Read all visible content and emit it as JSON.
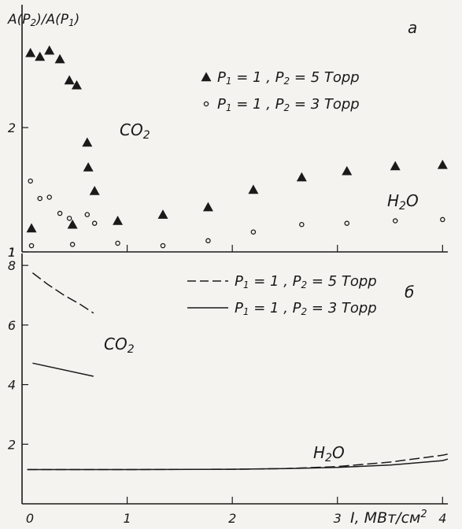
{
  "chart_data": [
    {
      "panel_label": "a",
      "type": "scatter",
      "ylabel": "A(P2)/A(P1)",
      "ylim": [
        1,
        2.95
      ],
      "xlim": [
        0,
        4.05
      ],
      "y_ticks": [
        1,
        2
      ],
      "x_ticks": [
        1,
        2,
        3,
        4
      ],
      "legend_position": "top-right",
      "annotations": [
        "CO2",
        "H2O"
      ],
      "series": [
        {
          "name": "P1 = 1 , P2 = 5 Торр",
          "marker": "triangle",
          "x": [
            0.08,
            0.17,
            0.26,
            0.36,
            0.45,
            0.52,
            0.62,
            0.63,
            0.69,
            0.09,
            0.48,
            0.91,
            1.34,
            1.77,
            2.2,
            2.66,
            3.09,
            3.55,
            4.0
          ],
          "y": [
            2.6,
            2.57,
            2.62,
            2.55,
            2.38,
            2.34,
            1.88,
            1.68,
            1.49,
            1.19,
            1.22,
            1.25,
            1.3,
            1.36,
            1.5,
            1.6,
            1.65,
            1.69,
            1.7
          ]
        },
        {
          "name": "P1 = 1 , P2 = 3 Торр",
          "marker": "circle",
          "x": [
            0.08,
            0.17,
            0.26,
            0.36,
            0.45,
            0.62,
            0.69,
            0.09,
            0.48,
            0.91,
            1.34,
            1.77,
            2.2,
            2.66,
            3.09,
            3.55,
            4.0
          ],
          "y": [
            1.57,
            1.43,
            1.44,
            1.31,
            1.27,
            1.3,
            1.23,
            1.05,
            1.06,
            1.07,
            1.05,
            1.09,
            1.16,
            1.22,
            1.23,
            1.25,
            1.26
          ]
        }
      ]
    },
    {
      "panel_label": "б",
      "type": "line",
      "xlabel": "I, МВт/см²",
      "ylim": [
        0,
        8.4
      ],
      "xlim": [
        0,
        4.05
      ],
      "y_ticks": [
        2,
        4,
        6,
        8
      ],
      "x_ticks": [
        0,
        1,
        2,
        3,
        4
      ],
      "legend_position": "top-right",
      "annotations": [
        "CO2",
        "H2O"
      ],
      "series": [
        {
          "name": "P1 = 1 , P2 = 5 Торр",
          "dash": "dashed",
          "group": "CO2",
          "x": [
            0.1,
            0.25,
            0.4,
            0.55,
            0.68
          ],
          "y": [
            7.75,
            7.35,
            7.0,
            6.7,
            6.4
          ]
        },
        {
          "name": "P1 = 1 , P2 = 5 Торр",
          "dash": "dashed",
          "group": "H2O",
          "x": [
            0.05,
            1.0,
            2.0,
            2.5,
            3.0,
            3.5,
            4.0,
            4.05
          ],
          "y": [
            1.15,
            1.15,
            1.16,
            1.18,
            1.25,
            1.4,
            1.63,
            1.67
          ]
        },
        {
          "name": "P1 = 1 , P2 = 3 Торр",
          "dash": "solid",
          "group": "CO2",
          "x": [
            0.1,
            0.68
          ],
          "y": [
            4.72,
            4.28
          ]
        },
        {
          "name": "P1 = 1 , P2 = 3 Торр",
          "dash": "solid",
          "group": "H2O",
          "x": [
            0.05,
            1.0,
            2.0,
            2.5,
            3.0,
            3.5,
            4.0,
            4.05
          ],
          "y": [
            1.15,
            1.15,
            1.16,
            1.18,
            1.22,
            1.3,
            1.45,
            1.5
          ]
        }
      ]
    }
  ]
}
